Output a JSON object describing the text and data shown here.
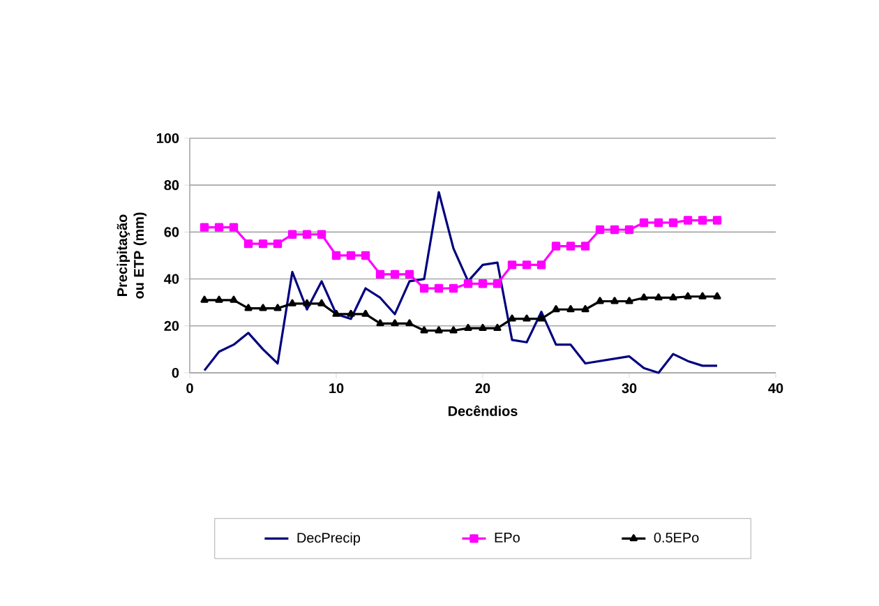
{
  "chart_data": {
    "type": "line",
    "xlabel": "Decêndios",
    "ylabel": "Precipitação ou ETP (mm)",
    "x": [
      1,
      2,
      3,
      4,
      5,
      6,
      7,
      8,
      9,
      10,
      11,
      12,
      13,
      14,
      15,
      16,
      17,
      18,
      19,
      20,
      21,
      22,
      23,
      24,
      25,
      26,
      27,
      28,
      29,
      30,
      31,
      32,
      33,
      34,
      35,
      36
    ],
    "series": [
      {
        "name": "DecPrecip",
        "color": "#000080",
        "marker": "none",
        "values": [
          1,
          9,
          12,
          17,
          10,
          4,
          43,
          27,
          39,
          25,
          23,
          36,
          32,
          25,
          39,
          40,
          77,
          53,
          39,
          46,
          47,
          14,
          13,
          26,
          12,
          12,
          4,
          5,
          6,
          7,
          2,
          0,
          8,
          5,
          3,
          3
        ]
      },
      {
        "name": "EPo",
        "color": "#ff00ff",
        "marker": "square",
        "values": [
          62,
          62,
          62,
          55,
          55,
          55,
          59,
          59,
          59,
          50,
          50,
          50,
          42,
          42,
          42,
          36,
          36,
          36,
          38,
          38,
          38,
          46,
          46,
          46,
          54,
          54,
          54,
          61,
          61,
          61,
          64,
          64,
          64,
          65,
          65,
          65
        ]
      },
      {
        "name": "0.5EPo",
        "color": "#000000",
        "marker": "triangle",
        "values": [
          31,
          31,
          31,
          27.5,
          27.5,
          27.5,
          29.5,
          29.5,
          29.5,
          25,
          25,
          25,
          21,
          21,
          21,
          18,
          18,
          18,
          19,
          19,
          19,
          23,
          23,
          23,
          27,
          27,
          27,
          30.5,
          30.5,
          30.5,
          32,
          32,
          32,
          32.5,
          32.5,
          32.5
        ]
      }
    ],
    "xlim": [
      0,
      40
    ],
    "xticks": [
      0,
      10,
      20,
      30,
      40
    ],
    "ylim": [
      0,
      100
    ],
    "yticks": [
      0,
      20,
      40,
      60,
      80,
      100
    ],
    "grid": "y",
    "legend": "bottom",
    "line_style": "solid"
  }
}
